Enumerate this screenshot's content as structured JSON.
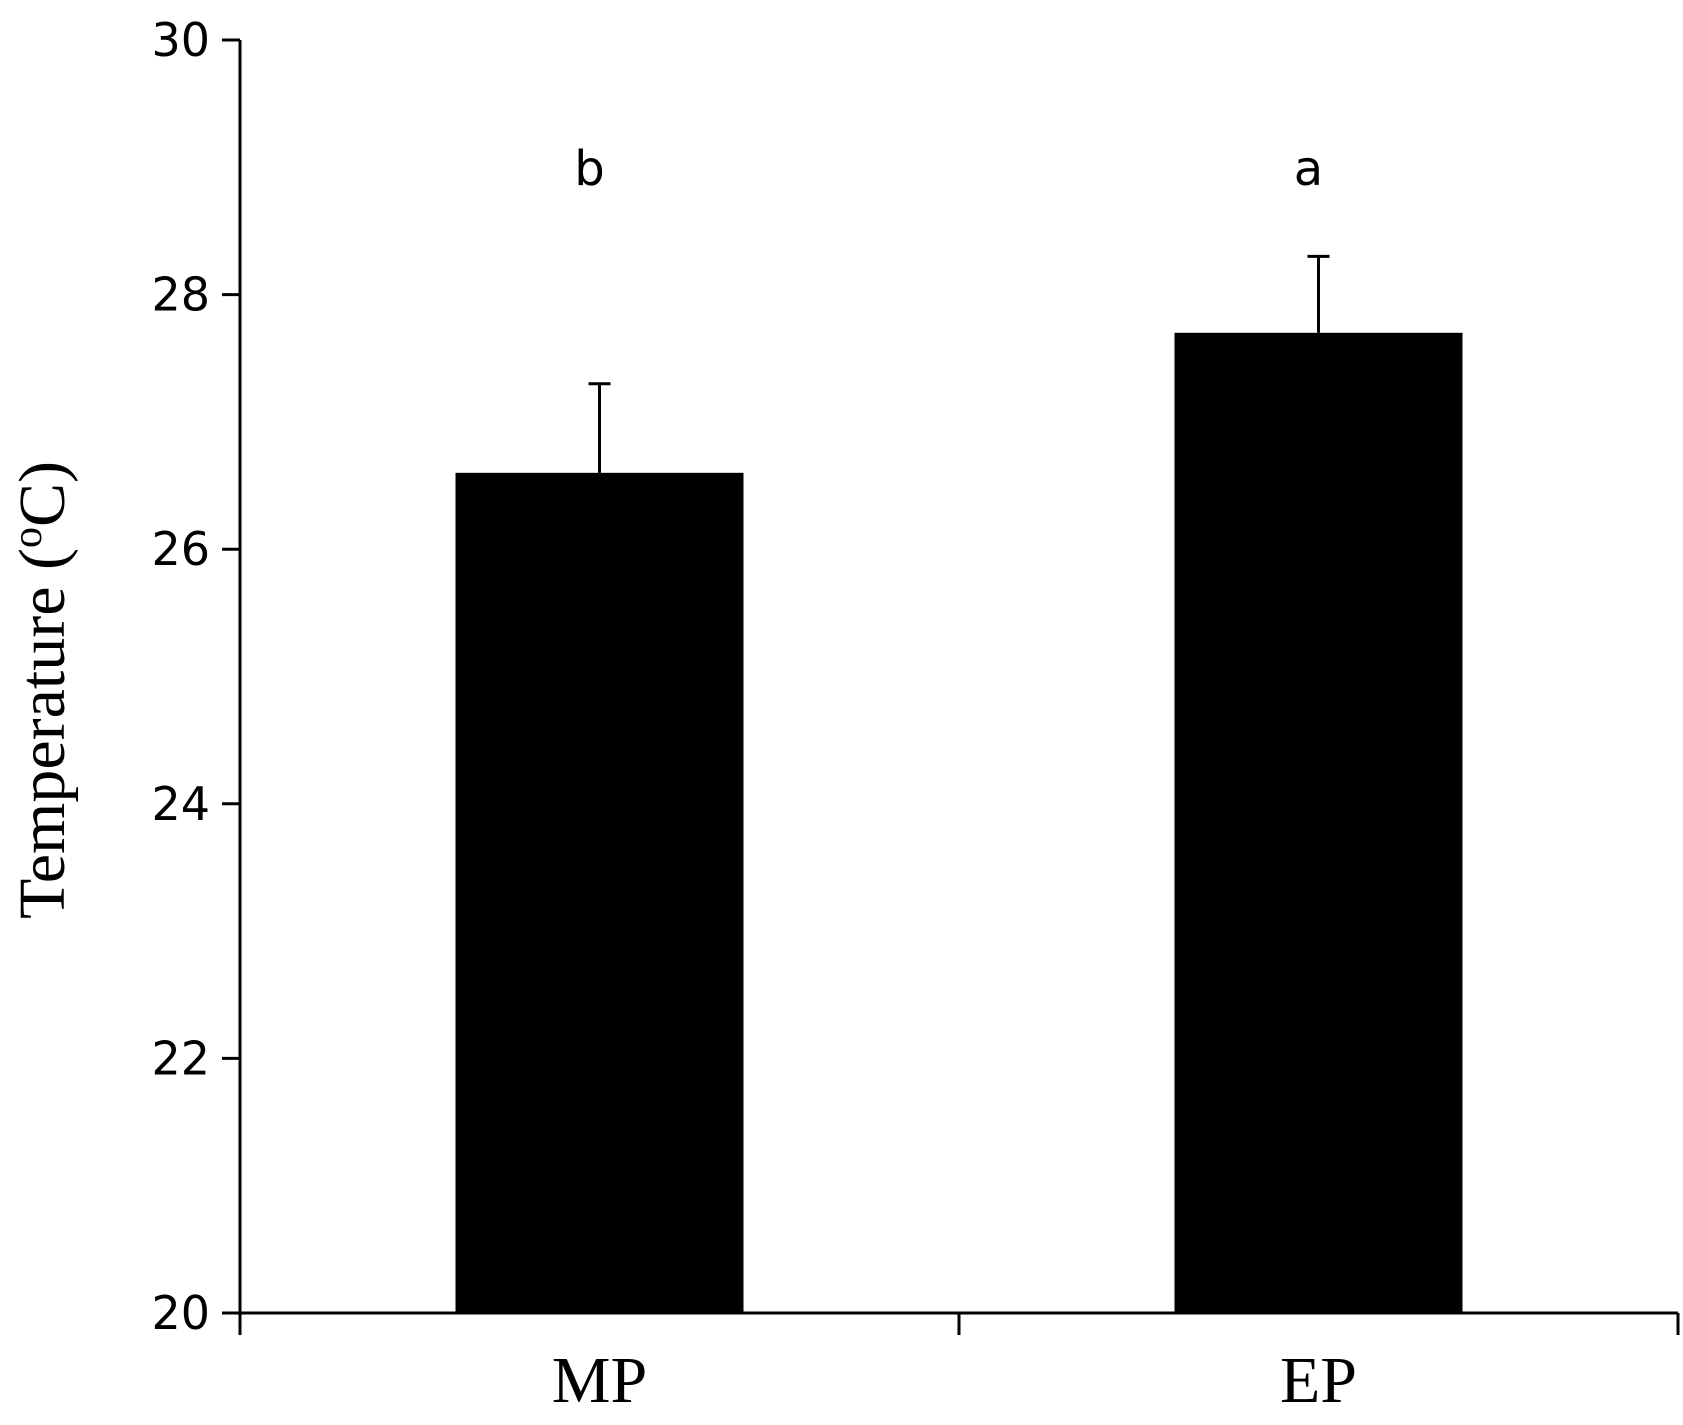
{
  "chart_data": {
    "type": "bar",
    "categories": [
      "MP",
      "EP"
    ],
    "values": [
      26.6,
      27.7
    ],
    "errors": [
      0.7,
      0.6
    ],
    "significance_letters": [
      "b",
      "a"
    ],
    "title": "",
    "xlabel": "",
    "ylabel": "Temperature (",
    "ylabel_superscript": "o",
    "ylabel_suffix": "C)",
    "ylim": [
      20,
      30
    ],
    "yticks": [
      20,
      22,
      24,
      26,
      28,
      30
    ],
    "grid": false,
    "legend": "none",
    "colors": {
      "bar": "#000000",
      "axis": "#000000"
    }
  }
}
